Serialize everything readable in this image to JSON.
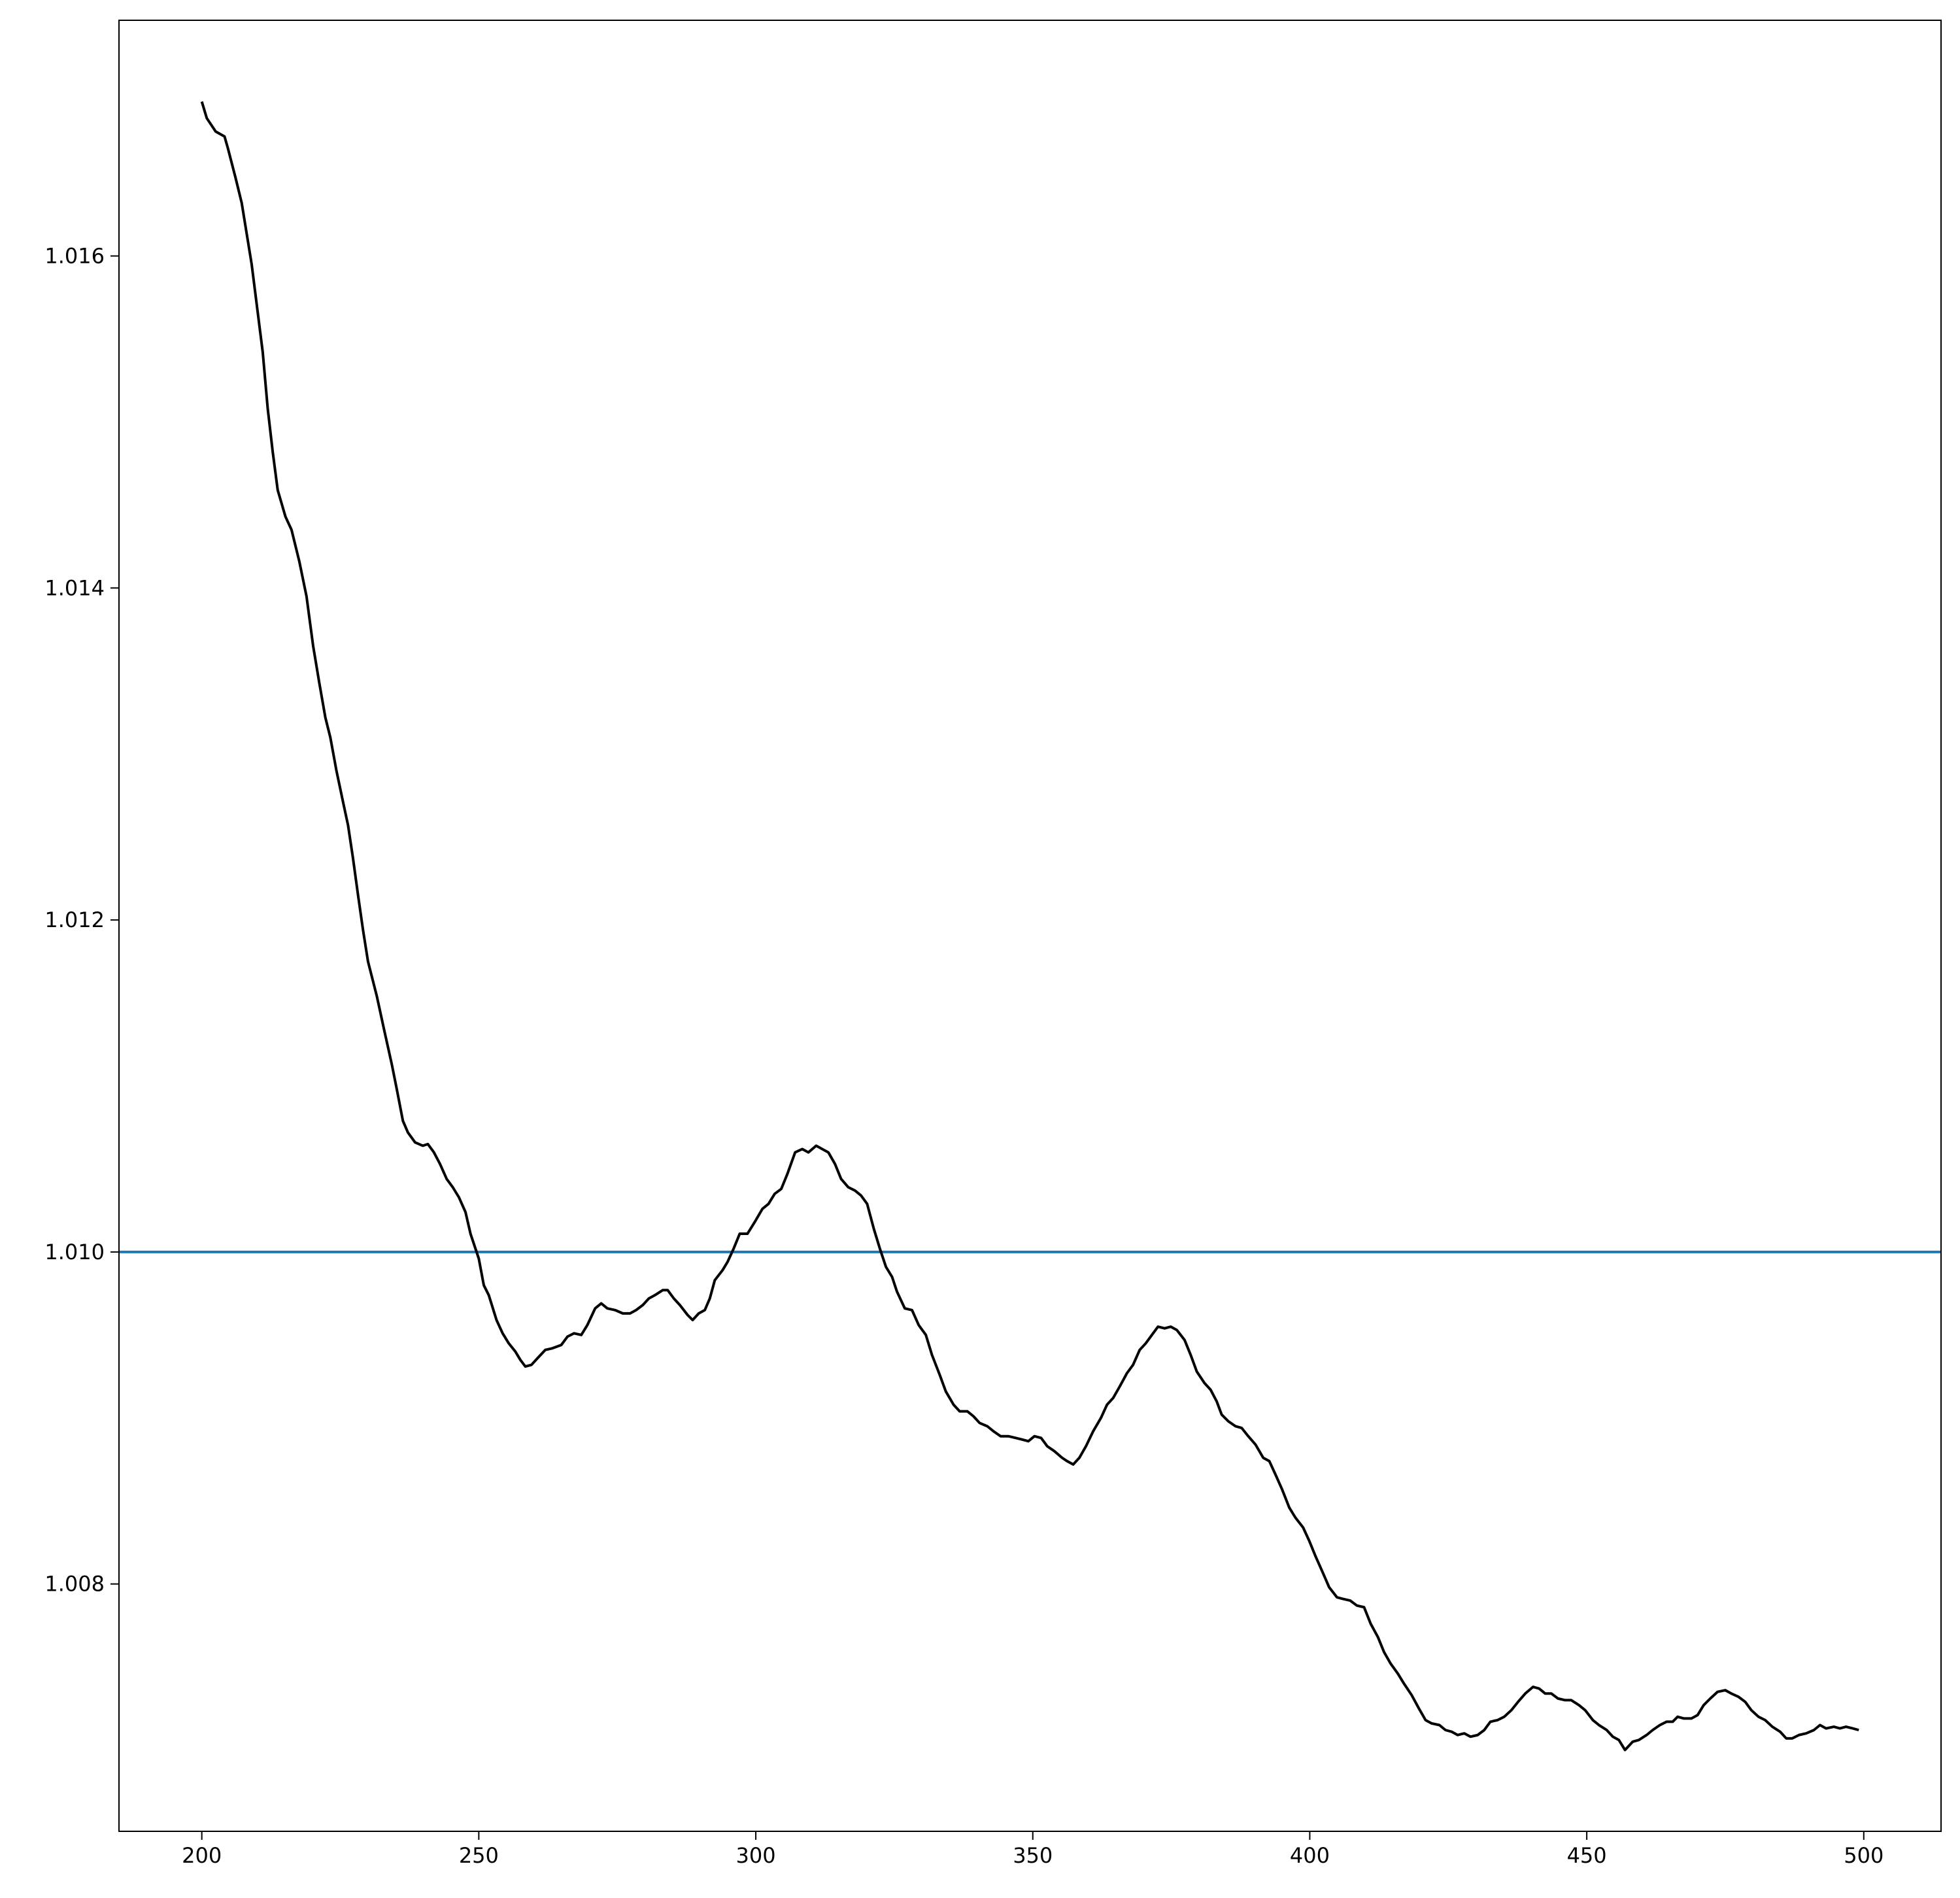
{
  "chart_data": {
    "type": "line",
    "x": [
      200,
      200.9,
      202.5,
      204.1,
      204.7,
      206.1,
      207.2,
      209.0,
      211.0,
      211.9,
      212.8,
      213.7,
      215.1,
      216.2,
      217.6,
      218.9,
      220.1,
      221.2,
      222.3,
      223.2,
      224.3,
      225.5,
      226.4,
      227.3,
      228.2,
      229.1,
      230.0,
      231.6,
      232.9,
      234.3,
      235.2,
      236.3,
      237.2,
      238.5,
      239.9,
      240.8,
      241.9,
      243.0,
      244.2,
      245.3,
      246.4,
      247.6,
      248.5,
      249.4,
      250.0,
      250.9,
      251.8,
      253.2,
      254.3,
      255.4,
      256.6,
      257.5,
      258.4,
      259.5,
      260.6,
      262.0,
      263.3,
      264.9,
      266.0,
      267.2,
      268.5,
      269.6,
      271.0,
      272.1,
      273.2,
      274.6,
      276.0,
      277.3,
      278.4,
      279.6,
      280.7,
      281.8,
      283.2,
      284.1,
      285.2,
      286.3,
      287.7,
      288.6,
      289.7,
      290.8,
      291.7,
      292.6,
      294.0,
      294.9,
      296.0,
      297.1,
      298.5,
      299.8,
      301.2,
      302.3,
      303.4,
      304.6,
      305.7,
      307.1,
      308.4,
      309.5,
      310.9,
      312.0,
      313.1,
      314.3,
      315.4,
      316.7,
      317.9,
      319.0,
      320.1,
      321.3,
      322.4,
      323.5,
      324.6,
      325.5,
      326.9,
      328.2,
      329.4,
      330.7,
      331.8,
      333.2,
      334.3,
      335.7,
      336.8,
      338.2,
      339.3,
      340.4,
      341.8,
      342.9,
      344.2,
      345.6,
      346.9,
      348.1,
      349.2,
      350.3,
      351.5,
      352.6,
      353.9,
      355.3,
      356.2,
      357.3,
      358.4,
      359.6,
      360.9,
      362.3,
      363.4,
      364.5,
      365.7,
      367.0,
      368.1,
      369.3,
      370.4,
      371.5,
      372.6,
      373.8,
      374.9,
      376.0,
      377.4,
      378.5,
      379.6,
      381.0,
      382.1,
      383.2,
      384.1,
      385.3,
      386.6,
      387.7,
      388.9,
      390.2,
      391.6,
      392.7,
      393.8,
      395.0,
      396.3,
      397.4,
      398.8,
      399.9,
      401.0,
      402.2,
      403.5,
      404.9,
      406.0,
      407.3,
      408.5,
      409.8,
      411.0,
      412.3,
      413.4,
      414.6,
      415.9,
      417.0,
      418.4,
      419.7,
      420.9,
      422.0,
      423.4,
      424.5,
      425.6,
      426.7,
      427.9,
      429.0,
      430.3,
      431.5,
      432.6,
      433.9,
      435.1,
      436.4,
      437.6,
      438.9,
      440.3,
      441.4,
      442.5,
      443.6,
      444.8,
      446.1,
      447.2,
      448.6,
      449.7,
      451.1,
      452.2,
      453.6,
      454.7,
      455.8,
      456.9,
      458.3,
      459.4,
      460.8,
      461.9,
      463.2,
      464.4,
      465.5,
      466.4,
      467.5,
      468.9,
      470.0,
      471.1,
      472.3,
      473.6,
      475.0,
      476.1,
      477.4,
      478.6,
      479.7,
      481.0,
      482.2,
      483.5,
      484.9,
      486.0,
      487.1,
      488.3,
      489.6,
      491.0,
      492.1,
      493.2,
      494.6,
      495.7,
      496.8,
      498.0,
      499.1
    ],
    "series": [
      {
        "color": "#000000",
        "values": [
          1.01693,
          1.01683,
          1.01675,
          1.01672,
          1.01665,
          1.01647,
          1.01632,
          1.01595,
          1.01542,
          1.01508,
          1.01482,
          1.01459,
          1.01443,
          1.01435,
          1.01416,
          1.01395,
          1.01365,
          1.01343,
          1.01322,
          1.0131,
          1.0129,
          1.01271,
          1.01257,
          1.01237,
          1.01215,
          1.01194,
          1.01175,
          1.01154,
          1.01134,
          1.01113,
          1.01098,
          1.01079,
          1.01072,
          1.01066,
          1.01064,
          1.01065,
          1.0106,
          1.01053,
          1.01044,
          1.01039,
          1.01033,
          1.01024,
          1.01011,
          1.01002,
          1.00996,
          1.0098,
          1.00974,
          1.00959,
          1.00951,
          1.00945,
          1.0094,
          1.00935,
          1.00931,
          1.00932,
          1.00936,
          1.00941,
          1.00942,
          1.00944,
          1.00949,
          1.00951,
          1.0095,
          1.00956,
          1.00966,
          1.00969,
          1.00966,
          1.00965,
          1.00963,
          1.00963,
          1.00965,
          1.00968,
          1.00972,
          1.00974,
          1.00977,
          1.00977,
          1.00972,
          1.00968,
          1.00962,
          1.00959,
          1.00963,
          1.00965,
          1.00972,
          1.00983,
          1.00989,
          1.00994,
          1.01002,
          1.01011,
          1.01011,
          1.01018,
          1.01026,
          1.01029,
          1.01035,
          1.01038,
          1.01047,
          1.0106,
          1.01062,
          1.0106,
          1.01064,
          1.01062,
          1.0106,
          1.01053,
          1.01044,
          1.01039,
          1.01037,
          1.01034,
          1.01029,
          1.01014,
          1.01002,
          1.00991,
          1.00985,
          1.00976,
          1.00966,
          1.00965,
          1.00956,
          1.0095,
          1.00938,
          1.00926,
          1.00916,
          1.00908,
          1.00904,
          1.00904,
          1.00901,
          1.00897,
          1.00895,
          1.00892,
          1.00889,
          1.00889,
          1.00888,
          1.00887,
          1.00886,
          1.00889,
          1.00888,
          1.00883,
          1.0088,
          1.00876,
          1.00874,
          1.00872,
          1.00876,
          1.00883,
          1.00892,
          1.009,
          1.00908,
          1.00912,
          1.00919,
          1.00927,
          1.00932,
          1.00941,
          1.00945,
          1.0095,
          1.00955,
          1.00954,
          1.00955,
          1.00953,
          1.00947,
          1.00938,
          1.00928,
          1.00921,
          1.00917,
          1.0091,
          1.00902,
          1.00898,
          1.00895,
          1.00894,
          1.00889,
          1.00884,
          1.00876,
          1.00874,
          1.00866,
          1.00857,
          1.00846,
          1.0084,
          1.00834,
          1.00826,
          1.00817,
          1.00808,
          1.00798,
          1.00792,
          1.00791,
          1.0079,
          1.00787,
          1.00786,
          1.00776,
          1.00768,
          1.00759,
          1.00752,
          1.00746,
          1.0074,
          1.00733,
          1.00725,
          1.00718,
          1.00716,
          1.00715,
          1.00712,
          1.00711,
          1.00709,
          1.0071,
          1.00708,
          1.00709,
          1.00712,
          1.00717,
          1.00718,
          1.0072,
          1.00724,
          1.00729,
          1.00734,
          1.00738,
          1.00737,
          1.00734,
          1.00734,
          1.00731,
          1.0073,
          1.0073,
          1.00727,
          1.00724,
          1.00718,
          1.00715,
          1.00712,
          1.00708,
          1.00706,
          1.007,
          1.00705,
          1.00706,
          1.00709,
          1.00712,
          1.00715,
          1.00717,
          1.00717,
          1.0072,
          1.00719,
          1.00719,
          1.00721,
          1.00727,
          1.00731,
          1.00735,
          1.00736,
          1.00734,
          1.00732,
          1.00729,
          1.00724,
          1.0072,
          1.00718,
          1.00714,
          1.00711,
          1.00707,
          1.00707,
          1.00709,
          1.0071,
          1.00712,
          1.00715,
          1.00713,
          1.00714,
          1.00713,
          1.00714,
          1.00713,
          1.00712
        ]
      }
    ],
    "hline": 1.01,
    "hline_color": "#1f77b4",
    "xlim": [
      185.05,
      513.95
    ],
    "xticks": [
      200,
      250,
      300,
      350,
      400,
      450,
      500
    ],
    "ylim": [
      1.00651,
      1.01742
    ],
    "yticks": [
      1.008,
      {
        "value": 1.01,
        "label": "1.010"
      },
      1.012,
      1.014,
      1.016
    ],
    "grid": false
  }
}
